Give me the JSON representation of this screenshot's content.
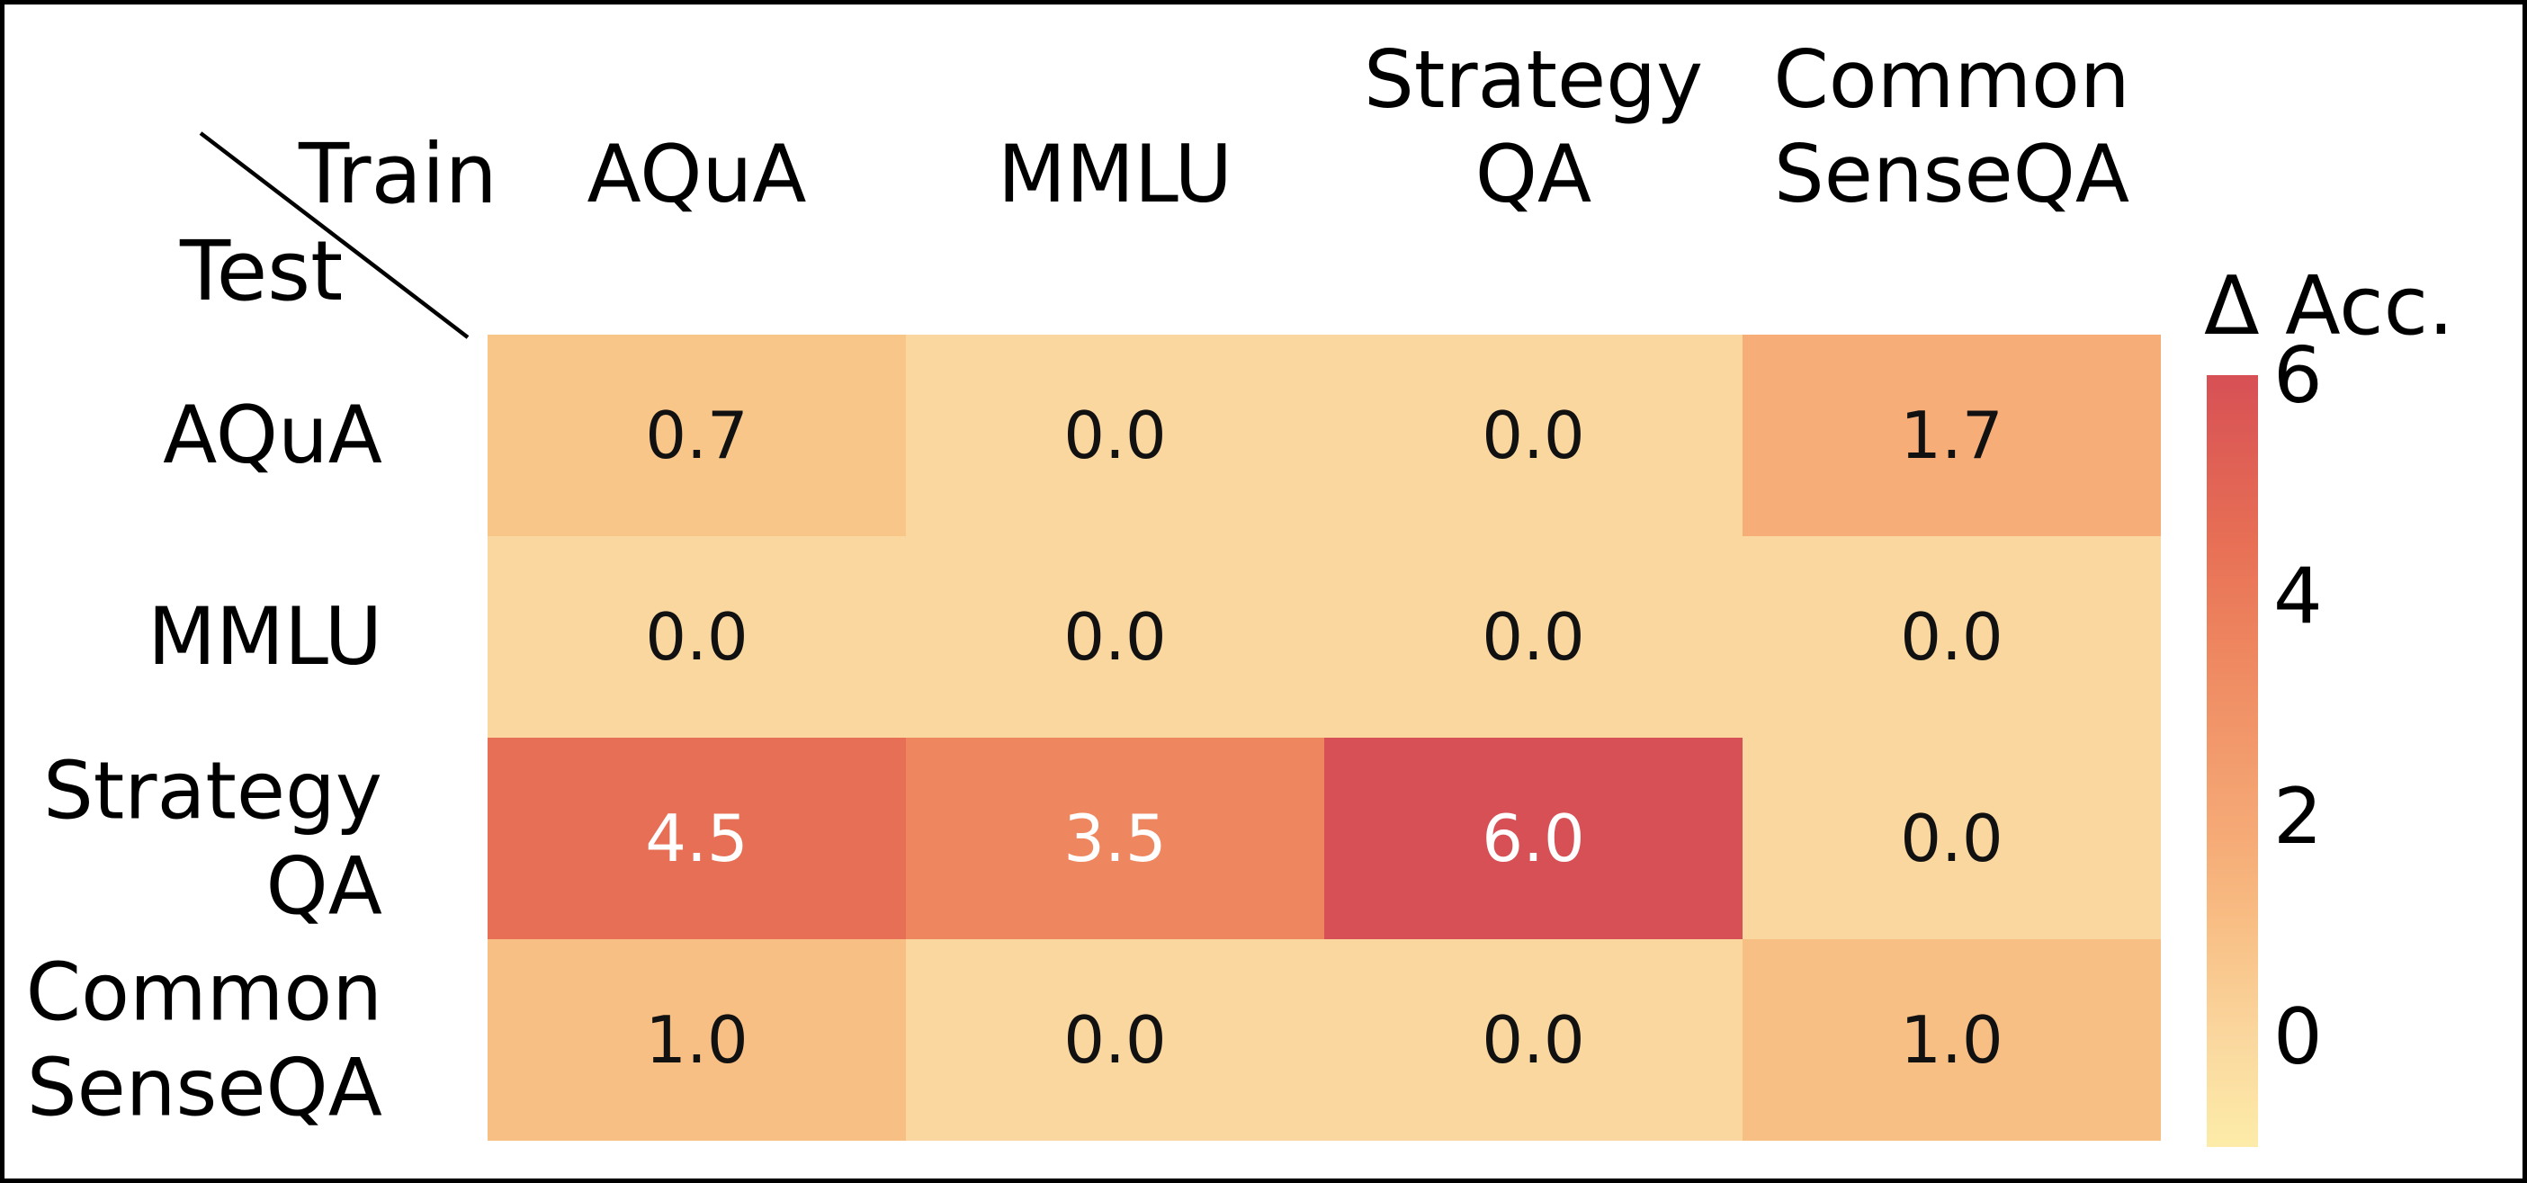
{
  "corner": {
    "train_label": "Train",
    "test_label": "Test"
  },
  "chart_data": {
    "type": "heatmap",
    "title": "",
    "x_axis_label": "Train",
    "y_axis_label": "Test",
    "column_labels": [
      [
        "AQuA"
      ],
      [
        "MMLU"
      ],
      [
        "Strategy",
        "QA"
      ],
      [
        "Common",
        "SenseQA"
      ]
    ],
    "row_labels": [
      [
        "AQuA"
      ],
      [
        "MMLU"
      ],
      [
        "Strategy",
        "QA"
      ],
      [
        "Common",
        "SenseQA"
      ]
    ],
    "values": [
      [
        0.7,
        0.0,
        0.0,
        1.7
      ],
      [
        0.0,
        0.0,
        0.0,
        0.0
      ],
      [
        4.5,
        3.5,
        6.0,
        0.0
      ],
      [
        1.0,
        0.0,
        0.0,
        1.0
      ]
    ],
    "cell_labels": [
      [
        "0.7",
        "0.0",
        "0.0",
        "1.7"
      ],
      [
        "0.0",
        "0.0",
        "0.0",
        "0.0"
      ],
      [
        "4.5",
        "3.5",
        "6.0",
        "0.0"
      ],
      [
        "1.0",
        "0.0",
        "0.0",
        "1.0"
      ]
    ],
    "cell_colors": [
      [
        "#f9c689",
        "#fad79e",
        "#fad79e",
        "#f6ad78"
      ],
      [
        "#fad79e",
        "#fad79e",
        "#fad79e",
        "#fad79e"
      ],
      [
        "#e76f55",
        "#ee8760",
        "#d75055",
        "#fad79e"
      ],
      [
        "#f8bf85",
        "#fad79e",
        "#fad79e",
        "#f8bf85"
      ]
    ],
    "cell_text_colors": [
      [
        "#111111",
        "#111111",
        "#111111",
        "#111111"
      ],
      [
        "#111111",
        "#111111",
        "#111111",
        "#111111"
      ],
      [
        "#ffffff",
        "#ffffff",
        "#ffffff",
        "#111111"
      ],
      [
        "#111111",
        "#111111",
        "#111111",
        "#111111"
      ]
    ],
    "colorbar": {
      "title": "Δ Acc.",
      "range": [
        -1,
        6
      ],
      "ticks": [
        {
          "label": "6",
          "value": 6
        },
        {
          "label": "4",
          "value": 4
        },
        {
          "label": "2",
          "value": 2
        },
        {
          "label": "0",
          "value": 0
        }
      ],
      "gradient_stops": [
        {
          "pos": 0,
          "color": "#d75055"
        },
        {
          "pos": 21.5,
          "color": "#e76f55"
        },
        {
          "pos": 35.8,
          "color": "#ee8760"
        },
        {
          "pos": 61.5,
          "color": "#f6ad78"
        },
        {
          "pos": 71.5,
          "color": "#f8bf85"
        },
        {
          "pos": 85.8,
          "color": "#fad79e"
        },
        {
          "pos": 100,
          "color": "#fdeca9"
        }
      ]
    }
  }
}
